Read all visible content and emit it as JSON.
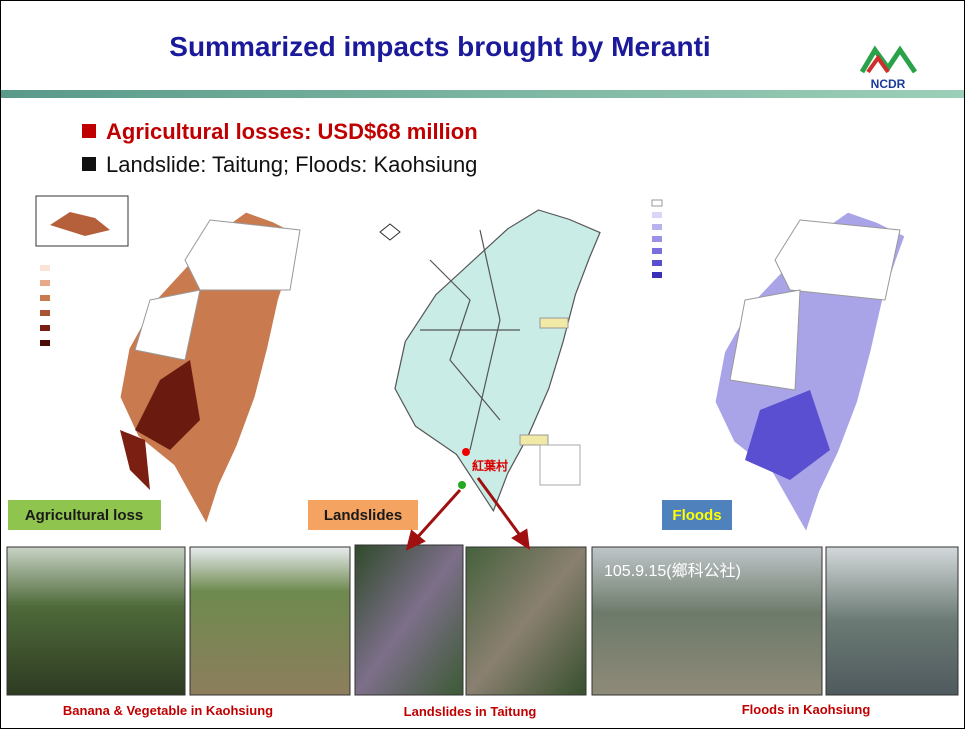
{
  "header": {
    "title": "Summarized impacts brought by Meranti",
    "logo": "NCDR"
  },
  "bullets": [
    "Agricultural losses: USD$68 million",
    "Landslide: Taitung; Floods: Kaohsiung"
  ],
  "maps": [
    {
      "label": "Agricultural loss"
    },
    {
      "label": "Landslides",
      "annotation": "紅葉村"
    },
    {
      "label": "Floods"
    }
  ],
  "photos": {
    "timestamp": "105.9.15(鄉科公社)"
  },
  "captions": [
    "Banana & Vegetable in Kaohsiung",
    "Landslides in Taitung",
    "Floods in Kaohsiung"
  ]
}
